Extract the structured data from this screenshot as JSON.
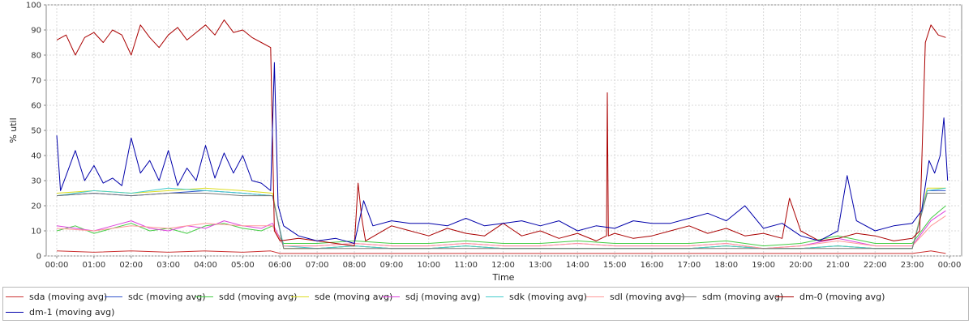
{
  "chart_data": {
    "type": "line",
    "title": "",
    "xlabel": "Time",
    "ylabel": "% util",
    "ylim": [
      0,
      100
    ],
    "yticks": [
      0,
      10,
      20,
      30,
      40,
      50,
      60,
      70,
      80,
      90,
      100
    ],
    "xlim": [
      "00:00",
      "24:00"
    ],
    "xticks": [
      "00:00",
      "01:00",
      "02:00",
      "03:00",
      "04:00",
      "05:00",
      "06:00",
      "07:00",
      "08:00",
      "09:00",
      "10:00",
      "11:00",
      "12:00",
      "13:00",
      "14:00",
      "15:00",
      "16:00",
      "17:00",
      "18:00",
      "19:00",
      "20:00",
      "21:00",
      "22:00",
      "23:00",
      "00:00"
    ],
    "grid": true,
    "legend_position": "bottom",
    "series": [
      {
        "name": "sda (moving avg)",
        "color": "#cc3333",
        "x": [
          0,
          1,
          2,
          3,
          4,
          5,
          5.75,
          6,
          7,
          8,
          9,
          10,
          11,
          12,
          13,
          14,
          15,
          16,
          17,
          18,
          19,
          20,
          21,
          22,
          23,
          23.5,
          23.9
        ],
        "y": [
          2,
          1.5,
          2,
          1.5,
          2,
          1.5,
          2,
          1,
          1,
          1,
          1,
          1,
          1,
          1,
          1,
          1,
          1,
          1,
          1,
          1,
          1,
          1,
          1,
          1,
          1,
          2,
          1
        ]
      },
      {
        "name": "sdc (moving avg)",
        "color": "#3355cc",
        "x": [
          0,
          1,
          2,
          3,
          4,
          5,
          5.8,
          6.1,
          7,
          8,
          9,
          10,
          11,
          12,
          13,
          14,
          15,
          16,
          17,
          18,
          19,
          20,
          21,
          22,
          23,
          23.4,
          23.9
        ],
        "y": [
          24,
          25,
          24,
          25,
          26,
          25,
          24,
          3,
          3,
          4,
          3,
          3,
          4,
          3,
          3,
          3,
          3,
          3,
          3,
          4,
          3,
          3,
          4,
          3,
          3,
          26,
          26
        ]
      },
      {
        "name": "sdd (moving avg)",
        "color": "#44cc44",
        "x": [
          0,
          0.5,
          1,
          1.5,
          2,
          2.5,
          3,
          3.5,
          4,
          4.5,
          5,
          5.5,
          5.8,
          6.1,
          7,
          8,
          9,
          10,
          11,
          12,
          13,
          14,
          15,
          16,
          17,
          18,
          19,
          20,
          21,
          22,
          23,
          23.5,
          23.9
        ],
        "y": [
          10,
          12,
          9,
          11,
          13,
          10,
          11,
          9,
          12,
          13,
          11,
          10,
          12,
          5,
          5,
          6,
          5,
          5,
          6,
          5,
          5,
          6,
          5,
          5,
          5,
          6,
          4,
          5,
          8,
          5,
          5,
          15,
          20
        ]
      },
      {
        "name": "sde (moving avg)",
        "color": "#dddd22",
        "x": [
          0,
          1,
          2,
          3,
          4,
          5,
          5.8,
          6.1,
          7,
          8,
          9,
          10,
          11,
          12,
          13,
          14,
          15,
          16,
          17,
          18,
          19,
          20,
          21,
          22,
          23,
          23.4,
          23.9
        ],
        "y": [
          25,
          26,
          25,
          26,
          27,
          26,
          25,
          3,
          3,
          4,
          3,
          3,
          4,
          3,
          3,
          3,
          3,
          3,
          3,
          4,
          3,
          3,
          4,
          3,
          3,
          27,
          27
        ]
      },
      {
        "name": "sdj (moving avg)",
        "color": "#dd44dd",
        "x": [
          0,
          0.5,
          1,
          1.5,
          2,
          2.5,
          3,
          3.5,
          4,
          4.5,
          5,
          5.5,
          5.8,
          6.1,
          7,
          8,
          9,
          10,
          11,
          12,
          13,
          14,
          15,
          16,
          17,
          18,
          19,
          20,
          21,
          22,
          23,
          23.5,
          23.9
        ],
        "y": [
          12,
          11,
          10,
          12,
          14,
          11,
          10,
          12,
          11,
          14,
          12,
          11,
          13,
          4,
          4,
          5,
          4,
          4,
          5,
          4,
          4,
          5,
          4,
          4,
          4,
          5,
          3,
          4,
          7,
          4,
          4,
          14,
          18
        ]
      },
      {
        "name": "sdk (moving avg)",
        "color": "#44cccc",
        "x": [
          0,
          1,
          2,
          3,
          4,
          5,
          5.8,
          6.1,
          7,
          8,
          9,
          10,
          11,
          12,
          13,
          14,
          15,
          16,
          17,
          18,
          19,
          20,
          21,
          22,
          23,
          23.4,
          23.9
        ],
        "y": [
          24,
          26,
          25,
          27,
          26,
          25,
          24,
          4,
          3,
          4,
          3,
          3,
          4,
          3,
          3,
          3,
          3,
          3,
          3,
          4,
          3,
          3,
          4,
          3,
          3,
          26,
          27
        ]
      },
      {
        "name": "sdl (moving avg)",
        "color": "#ff9999",
        "x": [
          0,
          1,
          2,
          3,
          4,
          5,
          5.8,
          6.1,
          7,
          8,
          9,
          10,
          11,
          12,
          13,
          14,
          15,
          16,
          17,
          18,
          19,
          20,
          21,
          22,
          23,
          23.5,
          23.9
        ],
        "y": [
          11,
          10,
          12,
          11,
          13,
          12,
          12,
          4,
          4,
          5,
          4,
          4,
          5,
          4,
          4,
          5,
          4,
          4,
          4,
          5,
          3,
          4,
          6,
          4,
          4,
          12,
          16
        ]
      },
      {
        "name": "sdm (moving avg)",
        "color": "#777777",
        "x": [
          0,
          1,
          2,
          3,
          4,
          5,
          5.8,
          6.1,
          7,
          8,
          9,
          10,
          11,
          12,
          13,
          14,
          15,
          16,
          17,
          18,
          19,
          20,
          21,
          22,
          23,
          23.4,
          23.9
        ],
        "y": [
          24,
          25,
          24,
          25,
          25,
          24,
          24,
          3,
          3,
          3,
          3,
          3,
          3,
          3,
          3,
          3,
          3,
          3,
          3,
          3,
          3,
          3,
          3,
          3,
          3,
          25,
          25
        ]
      },
      {
        "name": "dm-0 (moving avg)",
        "color": "#aa0000",
        "x": [
          0,
          0.25,
          0.5,
          0.75,
          1,
          1.25,
          1.5,
          1.75,
          2,
          2.25,
          2.5,
          2.75,
          3,
          3.25,
          3.5,
          3.75,
          4,
          4.25,
          4.5,
          4.75,
          5,
          5.25,
          5.5,
          5.75,
          5.85,
          6,
          6.5,
          7,
          7.5,
          8,
          8.1,
          8.2,
          8.3,
          9,
          9.5,
          10,
          10.5,
          11,
          11.5,
          12,
          12.5,
          13,
          13.5,
          14,
          14.5,
          14.78,
          14.8,
          14.83,
          15,
          15.5,
          16,
          16.5,
          17,
          17.5,
          18,
          18.5,
          19,
          19.5,
          19.7,
          20,
          20.5,
          21,
          21.5,
          22,
          22.5,
          23,
          23.2,
          23.35,
          23.5,
          23.7,
          23.9
        ],
        "y": [
          86,
          88,
          80,
          87,
          89,
          85,
          90,
          88,
          80,
          92,
          87,
          83,
          88,
          91,
          86,
          89,
          92,
          88,
          94,
          89,
          90,
          87,
          85,
          83,
          10,
          6,
          7,
          6,
          5,
          4,
          29,
          15,
          6,
          12,
          10,
          8,
          11,
          9,
          8,
          13,
          8,
          10,
          7,
          9,
          6,
          8,
          65,
          8,
          9,
          7,
          8,
          10,
          12,
          9,
          11,
          8,
          9,
          7,
          23,
          10,
          6,
          7,
          9,
          8,
          6,
          7,
          10,
          85,
          92,
          88,
          87
        ]
      },
      {
        "name": "dm-1 (moving avg)",
        "color": "#0000aa",
        "x": [
          0,
          0.1,
          0.25,
          0.5,
          0.75,
          1,
          1.25,
          1.5,
          1.75,
          2,
          2.25,
          2.5,
          2.75,
          3,
          3.25,
          3.5,
          3.75,
          4,
          4.25,
          4.5,
          4.75,
          5,
          5.25,
          5.5,
          5.75,
          5.85,
          5.95,
          6.1,
          6.5,
          7,
          7.5,
          8,
          8.25,
          8.5,
          9,
          9.5,
          10,
          10.5,
          11,
          11.5,
          12,
          12.5,
          13,
          13.5,
          14,
          14.5,
          15,
          15.5,
          16,
          16.5,
          17,
          17.5,
          18,
          18.5,
          19,
          19.5,
          20,
          20.5,
          21,
          21.25,
          21.5,
          22,
          22.5,
          23,
          23.25,
          23.45,
          23.6,
          23.75,
          23.85,
          23.95
        ],
        "y": [
          48,
          26,
          32,
          42,
          30,
          36,
          29,
          31,
          28,
          47,
          33,
          38,
          30,
          42,
          28,
          35,
          30,
          44,
          31,
          41,
          33,
          40,
          30,
          29,
          26,
          77,
          20,
          12,
          8,
          6,
          7,
          5,
          22,
          12,
          14,
          13,
          13,
          12,
          15,
          12,
          13,
          14,
          12,
          14,
          10,
          12,
          11,
          14,
          13,
          13,
          15,
          17,
          14,
          20,
          11,
          13,
          8,
          6,
          10,
          32,
          14,
          10,
          12,
          13,
          18,
          38,
          33,
          40,
          55,
          30
        ]
      }
    ]
  },
  "legend_rows": [
    [
      "sda (moving avg)",
      "sdc (moving avg)",
      "sdd (moving avg)",
      "sde (moving avg)",
      "sdj (moving avg)",
      "sdk (moving avg)",
      "sdl (moving avg)",
      "sdm (moving avg)",
      "dm-0 (moving avg)"
    ],
    [
      "dm-1 (moving avg)"
    ]
  ]
}
